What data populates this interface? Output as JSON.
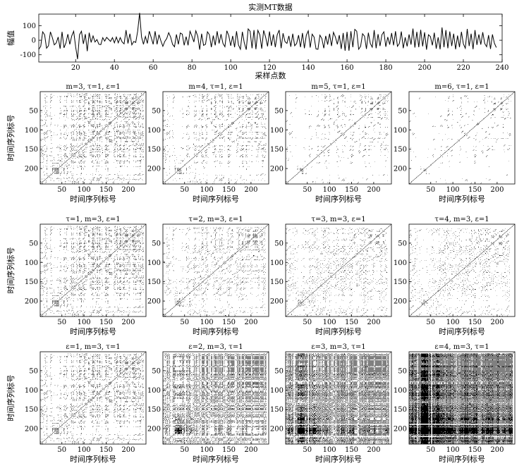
{
  "chart_data": [
    {
      "type": "line",
      "title": "实测MT数据",
      "xlabel": "采样点数",
      "ylabel": "幅值",
      "xlim": [
        1,
        240
      ],
      "ylim": [
        -150,
        180
      ],
      "xticks": [
        20,
        40,
        60,
        80,
        100,
        120,
        140,
        160,
        180,
        200,
        220,
        240
      ],
      "yticks": [
        100,
        0,
        -100
      ],
      "series": [
        {
          "values": [
            -62,
            -42,
            58,
            38,
            -55,
            -38,
            58,
            18,
            -32,
            -18,
            22,
            -58,
            58,
            -52,
            -18,
            42,
            -28,
            30,
            62,
            -45,
            -130,
            38,
            62,
            -25,
            42,
            -75,
            52,
            -15,
            30,
            -12,
            5,
            -28,
            -30,
            18,
            -6,
            20,
            6,
            -8,
            18,
            -18,
            22,
            -18,
            18,
            -12,
            -25,
            70,
            -22,
            45,
            -32,
            -8,
            -15,
            62,
            188,
            22,
            -28,
            26,
            -22,
            62,
            18,
            -28,
            62,
            -28,
            38,
            -5,
            -42,
            -8,
            12,
            52,
            22,
            -28,
            -45,
            40,
            -28,
            50,
            42,
            -35,
            25,
            -35,
            62,
            28,
            -12,
            65,
            28,
            -65,
            45,
            -35,
            -28,
            58,
            38,
            -48,
            32,
            -35,
            62,
            -22,
            42,
            -22,
            -45,
            65,
            32,
            -38,
            30,
            -48,
            62,
            -32,
            -62,
            58,
            -18,
            -65,
            78,
            62,
            -55,
            70,
            -62,
            68,
            38,
            -58,
            68,
            22,
            -42,
            60,
            -38,
            40,
            -48,
            38,
            70,
            -55,
            48,
            -10,
            -22,
            30,
            -45,
            45,
            -38,
            -22,
            35,
            -48,
            50,
            -55,
            35,
            65,
            -50,
            42,
            22,
            -60,
            -62,
            35,
            12,
            -55,
            30,
            -30,
            45,
            -40,
            55,
            22,
            -28,
            35,
            -60,
            50,
            -72,
            58,
            -72,
            62,
            -48,
            75,
            62,
            -62,
            -42,
            45,
            28,
            -60,
            52,
            -22,
            -48,
            70,
            -55,
            42,
            -40,
            38,
            58,
            -45,
            22,
            -30,
            50,
            -35,
            62,
            -42,
            -22,
            60,
            -55,
            20,
            -42,
            40,
            -30,
            80,
            -50,
            58,
            -48,
            72,
            -42,
            55,
            -65,
            38,
            25,
            -35,
            52,
            -58,
            20,
            -62,
            88,
            -48,
            70,
            -55,
            60,
            -40,
            45,
            -62,
            32,
            -48,
            58,
            -25,
            -55,
            78,
            -40,
            45,
            -62,
            70,
            -32,
            40,
            -30,
            55,
            -22,
            -45,
            35,
            -60,
            40,
            -20,
            -50
          ]
        }
      ]
    },
    {
      "type": "heatmap",
      "panels": [
        {
          "m": 3,
          "tau": 1,
          "eps": 1,
          "title": "m=3, τ=1, ε=1",
          "xlabel": "时间序列标号",
          "ylabel": "时间序列标号"
        },
        {
          "m": 4,
          "tau": 1,
          "eps": 1,
          "title": "m=4, τ=1, ε=1",
          "xlabel": "时间序列标号",
          "ylabel": ""
        },
        {
          "m": 5,
          "tau": 1,
          "eps": 1,
          "title": "m=5, τ=1, ε=1",
          "xlabel": "时间序列标号",
          "ylabel": ""
        },
        {
          "m": 6,
          "tau": 1,
          "eps": 1,
          "title": "m=6, τ=1, ε=1",
          "xlabel": "时间序列标号",
          "ylabel": ""
        },
        {
          "m": 3,
          "tau": 1,
          "eps": 1,
          "title": "τ=1, m=3, ε=1",
          "xlabel": "时间序列标号",
          "ylabel": "时间序列标号"
        },
        {
          "m": 3,
          "tau": 2,
          "eps": 1,
          "title": "τ=2, m=3, ε=1",
          "xlabel": "时间序列标号",
          "ylabel": ""
        },
        {
          "m": 3,
          "tau": 3,
          "eps": 1,
          "title": "τ=3, m=3, ε=1",
          "xlabel": "时间序列标号",
          "ylabel": ""
        },
        {
          "m": 3,
          "tau": 4,
          "eps": 1,
          "title": "τ=4, m=3, ε=1",
          "xlabel": "时间序列标号",
          "ylabel": ""
        },
        {
          "m": 3,
          "tau": 1,
          "eps": 1,
          "title": "ε=1, m=3, τ=1",
          "xlabel": "时间序列标号",
          "ylabel": "时间序列标号"
        },
        {
          "m": 3,
          "tau": 1,
          "eps": 2,
          "title": "ε=2, m=3, τ=1",
          "xlabel": "时间序列标号",
          "ylabel": ""
        },
        {
          "m": 3,
          "tau": 1,
          "eps": 3,
          "title": "ε=3, m=3, τ=1",
          "xlabel": "时间序列标号",
          "ylabel": ""
        },
        {
          "m": 3,
          "tau": 1,
          "eps": 4,
          "title": "ε=4, m=3, τ=1",
          "xlabel": "时间序列标号",
          "ylabel": ""
        }
      ],
      "xticks": [
        50,
        100,
        150,
        200
      ],
      "yticks": [
        50,
        100,
        150,
        200
      ],
      "xlim": [
        1,
        240
      ],
      "ylim": [
        1,
        240
      ],
      "colors": {
        "recurrence": "#000000",
        "background": "#ffffff"
      }
    }
  ]
}
